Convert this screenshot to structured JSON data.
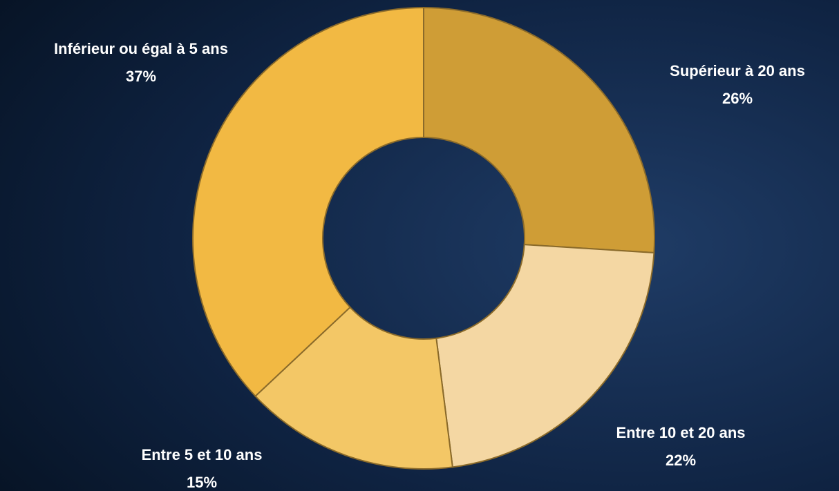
{
  "chart_data": {
    "type": "pie",
    "categories": [
      "Supérieur à 20 ans",
      "Entre 10 et 20 ans",
      "Entre 5 et 10 ans",
      "Inférieur ou égal à 5 ans"
    ],
    "values": [
      26,
      22,
      15,
      37
    ],
    "value_labels": [
      "26%",
      "22%",
      "15%",
      "37%"
    ],
    "colors": [
      "#cf9d36",
      "#f4d7a3",
      "#f3c766",
      "#f2b943"
    ]
  }
}
